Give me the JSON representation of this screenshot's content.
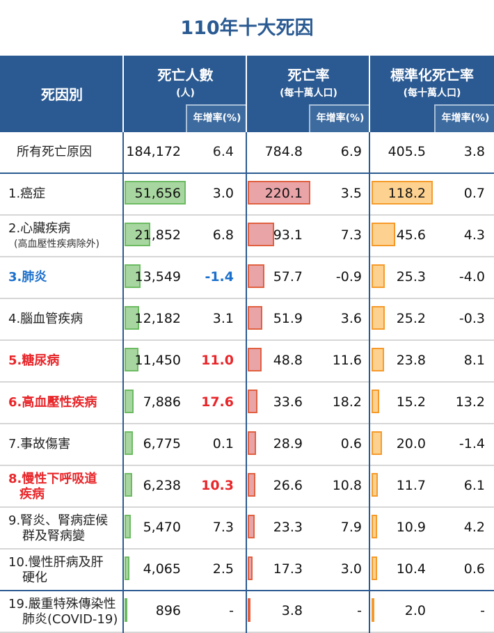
{
  "title": "110年十大死因",
  "header": {
    "cause": "死因別",
    "deaths": "死亡人數",
    "deaths_unit": "(人)",
    "rate": "死亡率",
    "rate_unit": "(每十萬人口)",
    "std": "標準化死亡率",
    "std_unit": "(每十萬人口)",
    "growth": "年增率(%)"
  },
  "colors": {
    "header": "#2b5a92",
    "green_fill": "#a8d6a0",
    "green_border": "#6cbb62",
    "red_fill": "#e9a4a8",
    "red_border": "#e0603f",
    "orange_fill": "#fdd291",
    "orange_border": "#f59a2a",
    "blue_text": "#1a6fcc",
    "red_text": "#e8262a"
  },
  "rows": [
    {
      "label": [
        "所有死亡原因"
      ],
      "deaths": "184,172",
      "deaths_g": "6.4",
      "rate": "784.8",
      "rate_g": "6.9",
      "std": "405.5",
      "std_g": "3.8",
      "style": "total"
    },
    {
      "label": [
        "1.癌症"
      ],
      "deaths": "51,656",
      "deaths_g": "3.0",
      "rate": "220.1",
      "rate_g": "3.5",
      "std": "118.2",
      "std_g": "0.7",
      "dv": 51656,
      "rv": 220.1,
      "sv": 118.2
    },
    {
      "label": [
        "2.心臟疾病"
      ],
      "sublabel": "(高血壓性疾病除外)",
      "deaths": "21,852",
      "deaths_g": "6.8",
      "rate": "93.1",
      "rate_g": "7.3",
      "std": "45.6",
      "std_g": "4.3",
      "dv": 21852,
      "rv": 93.1,
      "sv": 45.6
    },
    {
      "label": [
        "3.肺炎"
      ],
      "deaths": "13,549",
      "deaths_g": "-1.4",
      "rate": "57.7",
      "rate_g": "-0.9",
      "std": "25.3",
      "std_g": "-4.0",
      "dv": 13549,
      "rv": 57.7,
      "sv": 25.3,
      "style": "blue"
    },
    {
      "label": [
        "4.腦血管疾病"
      ],
      "deaths": "12,182",
      "deaths_g": "3.1",
      "rate": "51.9",
      "rate_g": "3.6",
      "std": "25.2",
      "std_g": "-0.3",
      "dv": 12182,
      "rv": 51.9,
      "sv": 25.2
    },
    {
      "label": [
        "5.糖尿病"
      ],
      "deaths": "11,450",
      "deaths_g": "11.0",
      "rate": "48.8",
      "rate_g": "11.6",
      "std": "23.8",
      "std_g": "8.1",
      "dv": 11450,
      "rv": 48.8,
      "sv": 23.8,
      "style": "red"
    },
    {
      "label": [
        "6.高血壓性疾病"
      ],
      "deaths": "7,886",
      "deaths_g": "17.6",
      "rate": "33.6",
      "rate_g": "18.2",
      "std": "15.2",
      "std_g": "13.2",
      "dv": 7886,
      "rv": 33.6,
      "sv": 15.2,
      "style": "red"
    },
    {
      "label": [
        "7.事故傷害"
      ],
      "deaths": "6,775",
      "deaths_g": "0.1",
      "rate": "28.9",
      "rate_g": "0.6",
      "std": "20.0",
      "std_g": "-1.4",
      "dv": 6775,
      "rv": 28.9,
      "sv": 20.0
    },
    {
      "label": [
        "8.慢性下呼吸道",
        "疾病"
      ],
      "deaths": "6,238",
      "deaths_g": "10.3",
      "rate": "26.6",
      "rate_g": "10.8",
      "std": "11.7",
      "std_g": "6.1",
      "dv": 6238,
      "rv": 26.6,
      "sv": 11.7,
      "style": "red"
    },
    {
      "label": [
        "9.腎炎、腎病症候",
        "群及腎病變"
      ],
      "deaths": "5,470",
      "deaths_g": "7.3",
      "rate": "23.3",
      "rate_g": "7.9",
      "std": "10.9",
      "std_g": "4.2",
      "dv": 5470,
      "rv": 23.3,
      "sv": 10.9
    },
    {
      "label": [
        "10.慢性肝病及肝",
        "硬化"
      ],
      "deaths": "4,065",
      "deaths_g": "2.5",
      "rate": "17.3",
      "rate_g": "3.0",
      "std": "10.4",
      "std_g": "0.6",
      "dv": 4065,
      "rv": 17.3,
      "sv": 10.4
    },
    {
      "label": [
        "19.嚴重特殊傳染性",
        "肺炎(COVID-19)"
      ],
      "deaths": "896",
      "deaths_g": "-",
      "rate": "3.8",
      "rate_g": "-",
      "std": "2.0",
      "std_g": "-",
      "dv": 896,
      "rv": 3.8,
      "sv": 2.0
    }
  ]
}
